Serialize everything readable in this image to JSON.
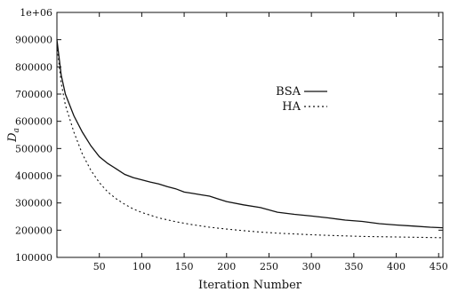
{
  "chart_data": {
    "type": "line",
    "title": "",
    "xlabel": "Iteration Number",
    "ylabel": "D",
    "ylabel_subscript": "a",
    "xlim": [
      0,
      455
    ],
    "ylim": [
      100000,
      1000000
    ],
    "x_ticks": [
      50,
      100,
      150,
      200,
      250,
      300,
      350,
      400,
      450
    ],
    "y_ticks": [
      100000,
      200000,
      300000,
      400000,
      500000,
      600000,
      700000,
      800000,
      900000,
      1000000
    ],
    "x_tick_labels": [
      "50",
      "100",
      "150",
      "200",
      "250",
      "300",
      "350",
      "400",
      "450"
    ],
    "y_tick_labels": [
      "100000",
      "200000",
      "300000",
      "400000",
      "500000",
      "600000",
      "700000",
      "800000",
      "900000",
      "1e+06"
    ],
    "grid": false,
    "legend_position": "center-right",
    "series": [
      {
        "name": "BSA",
        "style": "solid",
        "x": [
          0,
          5,
          10,
          20,
          30,
          40,
          50,
          60,
          70,
          80,
          90,
          100,
          110,
          120,
          130,
          140,
          150,
          160,
          170,
          180,
          190,
          200,
          220,
          240,
          260,
          280,
          300,
          320,
          340,
          360,
          380,
          400,
          420,
          440,
          455
        ],
        "y": [
          900000,
          770000,
          700000,
          620000,
          560000,
          510000,
          470000,
          445000,
          425000,
          405000,
          393000,
          385000,
          377000,
          370000,
          360000,
          352000,
          340000,
          335000,
          330000,
          325000,
          315000,
          305000,
          293000,
          283000,
          266000,
          258000,
          252000,
          245000,
          237000,
          232000,
          224000,
          219000,
          215000,
          211000,
          209000
        ]
      },
      {
        "name": "HA",
        "style": "dashed",
        "x": [
          0,
          5,
          10,
          20,
          30,
          40,
          50,
          60,
          70,
          80,
          90,
          100,
          120,
          140,
          160,
          180,
          200,
          220,
          240,
          260,
          280,
          300,
          320,
          340,
          360,
          380,
          400,
          420,
          440,
          455
        ],
        "y": [
          880000,
          740000,
          660000,
          560000,
          480000,
          420000,
          375000,
          340000,
          315000,
          295000,
          278000,
          265000,
          245000,
          231000,
          220000,
          211000,
          204000,
          198000,
          193000,
          189000,
          186000,
          183000,
          181000,
          179000,
          177000,
          176000,
          175000,
          174000,
          173000,
          172000
        ]
      }
    ]
  }
}
